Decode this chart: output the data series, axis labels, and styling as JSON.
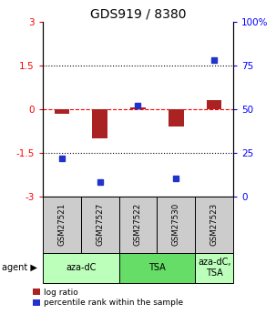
{
  "title": "GDS919 / 8380",
  "samples": [
    "GSM27521",
    "GSM27527",
    "GSM27522",
    "GSM27530",
    "GSM27523"
  ],
  "log_ratio": [
    -0.15,
    -1.0,
    0.05,
    -0.6,
    0.3
  ],
  "percentile_rank": [
    22,
    8,
    52,
    10,
    78
  ],
  "agents": [
    {
      "label": "aza-dC",
      "span": [
        0,
        2
      ],
      "color": "#bbffbb"
    },
    {
      "label": "TSA",
      "span": [
        2,
        4
      ],
      "color": "#66dd66"
    },
    {
      "label": "aza-dC,\nTSA",
      "span": [
        4,
        5
      ],
      "color": "#bbffbb"
    }
  ],
  "ylim_left": [
    -3,
    3
  ],
  "ylim_right": [
    0,
    100
  ],
  "yticks_left": [
    -3,
    -1.5,
    0,
    1.5,
    3
  ],
  "yticks_right": [
    0,
    25,
    50,
    75,
    100
  ],
  "yticklabels_right": [
    "0",
    "25",
    "50",
    "75",
    "100%"
  ],
  "hline_zero_color": "red",
  "hline_zero_ls": "--",
  "hline_other_color": "black",
  "hline_other_ls": ":",
  "bar_color_red": "#aa2222",
  "dot_color_blue": "#2233cc",
  "sample_box_color": "#cccccc",
  "legend_red_label": "log ratio",
  "legend_blue_label": "percentile rank within the sample",
  "title_fontsize": 10,
  "tick_fontsize": 7.5,
  "label_fontsize": 7,
  "bar_width": 0.4
}
